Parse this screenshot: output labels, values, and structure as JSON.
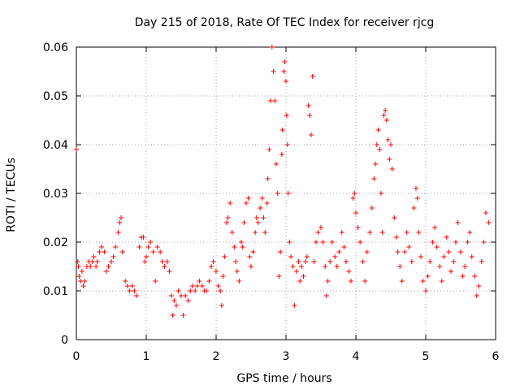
{
  "chart_data": {
    "type": "scatter",
    "title": "Day 215 of 2018, Rate Of TEC Index for receiver rjcg",
    "xlabel": "GPS time / hours",
    "ylabel": "ROTI / TECUs",
    "xlim": [
      0,
      6
    ],
    "ylim": [
      0,
      0.06
    ],
    "grid": true,
    "marker": "+",
    "color": "#ff0000",
    "xticks": [
      0,
      1,
      2,
      3,
      4,
      5,
      6
    ],
    "xtick_labels": [
      "0",
      "1",
      "2",
      "3",
      "4",
      "5",
      "6"
    ],
    "yticks": [
      0,
      0.01,
      0.02,
      0.03,
      0.04,
      0.05,
      0.06
    ],
    "ytick_labels": [
      "0",
      "0.01",
      "0.02",
      "0.03",
      "0.04",
      "0.05",
      "0.06"
    ],
    "points": [
      [
        0.0,
        0.039
      ],
      [
        0.02,
        0.016
      ],
      [
        0.03,
        0.015
      ],
      [
        0.04,
        0.013
      ],
      [
        0.06,
        0.012
      ],
      [
        0.08,
        0.014
      ],
      [
        0.1,
        0.011
      ],
      [
        0.12,
        0.012
      ],
      [
        0.15,
        0.015
      ],
      [
        0.18,
        0.016
      ],
      [
        0.2,
        0.015
      ],
      [
        0.23,
        0.016
      ],
      [
        0.25,
        0.017
      ],
      [
        0.28,
        0.015
      ],
      [
        0.3,
        0.016
      ],
      [
        0.33,
        0.018
      ],
      [
        0.36,
        0.019
      ],
      [
        0.4,
        0.018
      ],
      [
        0.43,
        0.014
      ],
      [
        0.46,
        0.015
      ],
      [
        0.5,
        0.016
      ],
      [
        0.53,
        0.017
      ],
      [
        0.56,
        0.019
      ],
      [
        0.6,
        0.022
      ],
      [
        0.62,
        0.024
      ],
      [
        0.64,
        0.025
      ],
      [
        0.66,
        0.018
      ],
      [
        0.7,
        0.012
      ],
      [
        0.73,
        0.011
      ],
      [
        0.76,
        0.01
      ],
      [
        0.8,
        0.011
      ],
      [
        0.83,
        0.01
      ],
      [
        0.86,
        0.009
      ],
      [
        0.9,
        0.019
      ],
      [
        0.93,
        0.021
      ],
      [
        0.96,
        0.021
      ],
      [
        0.98,
        0.016
      ],
      [
        1.0,
        0.017
      ],
      [
        1.03,
        0.019
      ],
      [
        1.06,
        0.02
      ],
      [
        1.1,
        0.018
      ],
      [
        1.13,
        0.012
      ],
      [
        1.16,
        0.019
      ],
      [
        1.2,
        0.018
      ],
      [
        1.23,
        0.016
      ],
      [
        1.26,
        0.015
      ],
      [
        1.3,
        0.016
      ],
      [
        1.33,
        0.014
      ],
      [
        1.36,
        0.009
      ],
      [
        1.38,
        0.005
      ],
      [
        1.4,
        0.008
      ],
      [
        1.43,
        0.007
      ],
      [
        1.46,
        0.01
      ],
      [
        1.5,
        0.009
      ],
      [
        1.53,
        0.005
      ],
      [
        1.56,
        0.009
      ],
      [
        1.6,
        0.008
      ],
      [
        1.63,
        0.01
      ],
      [
        1.66,
        0.011
      ],
      [
        1.7,
        0.01
      ],
      [
        1.73,
        0.011
      ],
      [
        1.76,
        0.012
      ],
      [
        1.8,
        0.011
      ],
      [
        1.83,
        0.01
      ],
      [
        1.86,
        0.01
      ],
      [
        1.9,
        0.012
      ],
      [
        1.93,
        0.015
      ],
      [
        1.96,
        0.016
      ],
      [
        2.0,
        0.014
      ],
      [
        2.03,
        0.011
      ],
      [
        2.06,
        0.01
      ],
      [
        2.08,
        0.007
      ],
      [
        2.1,
        0.013
      ],
      [
        2.12,
        0.017
      ],
      [
        2.15,
        0.024
      ],
      [
        2.17,
        0.025
      ],
      [
        2.2,
        0.028
      ],
      [
        2.23,
        0.022
      ],
      [
        2.26,
        0.019
      ],
      [
        2.28,
        0.016
      ],
      [
        2.3,
        0.014
      ],
      [
        2.33,
        0.012
      ],
      [
        2.36,
        0.02
      ],
      [
        2.38,
        0.019
      ],
      [
        2.4,
        0.024
      ],
      [
        2.43,
        0.028
      ],
      [
        2.46,
        0.029
      ],
      [
        2.48,
        0.017
      ],
      [
        2.5,
        0.015
      ],
      [
        2.53,
        0.018
      ],
      [
        2.56,
        0.022
      ],
      [
        2.58,
        0.025
      ],
      [
        2.6,
        0.024
      ],
      [
        2.63,
        0.027
      ],
      [
        2.66,
        0.029
      ],
      [
        2.68,
        0.025
      ],
      [
        2.7,
        0.022
      ],
      [
        2.73,
        0.028
      ],
      [
        2.74,
        0.033
      ],
      [
        2.76,
        0.039
      ],
      [
        2.78,
        0.049
      ],
      [
        2.8,
        0.06
      ],
      [
        2.82,
        0.055
      ],
      [
        2.84,
        0.049
      ],
      [
        2.86,
        0.036
      ],
      [
        2.88,
        0.03
      ],
      [
        2.9,
        0.013
      ],
      [
        2.92,
        0.018
      ],
      [
        2.94,
        0.038
      ],
      [
        2.95,
        0.043
      ],
      [
        2.97,
        0.055
      ],
      [
        2.98,
        0.057
      ],
      [
        3.0,
        0.053
      ],
      [
        3.01,
        0.046
      ],
      [
        3.02,
        0.04
      ],
      [
        3.03,
        0.03
      ],
      [
        3.05,
        0.02
      ],
      [
        3.07,
        0.017
      ],
      [
        3.1,
        0.015
      ],
      [
        3.12,
        0.007
      ],
      [
        3.15,
        0.014
      ],
      [
        3.18,
        0.016
      ],
      [
        3.2,
        0.012
      ],
      [
        3.22,
        0.015
      ],
      [
        3.25,
        0.013
      ],
      [
        3.28,
        0.016
      ],
      [
        3.3,
        0.017
      ],
      [
        3.32,
        0.048
      ],
      [
        3.34,
        0.046
      ],
      [
        3.36,
        0.042
      ],
      [
        3.38,
        0.054
      ],
      [
        3.4,
        0.016
      ],
      [
        3.43,
        0.02
      ],
      [
        3.46,
        0.022
      ],
      [
        3.5,
        0.023
      ],
      [
        3.53,
        0.02
      ],
      [
        3.56,
        0.015
      ],
      [
        3.58,
        0.009
      ],
      [
        3.6,
        0.012
      ],
      [
        3.63,
        0.016
      ],
      [
        3.66,
        0.02
      ],
      [
        3.7,
        0.017
      ],
      [
        3.73,
        0.015
      ],
      [
        3.76,
        0.018
      ],
      [
        3.8,
        0.022
      ],
      [
        3.83,
        0.019
      ],
      [
        3.86,
        0.016
      ],
      [
        3.9,
        0.014
      ],
      [
        3.93,
        0.012
      ],
      [
        3.96,
        0.029
      ],
      [
        3.98,
        0.03
      ],
      [
        4.0,
        0.026
      ],
      [
        4.03,
        0.023
      ],
      [
        4.06,
        0.02
      ],
      [
        4.1,
        0.016
      ],
      [
        4.13,
        0.012
      ],
      [
        4.16,
        0.018
      ],
      [
        4.2,
        0.022
      ],
      [
        4.23,
        0.027
      ],
      [
        4.26,
        0.033
      ],
      [
        4.28,
        0.036
      ],
      [
        4.3,
        0.04
      ],
      [
        4.32,
        0.043
      ],
      [
        4.34,
        0.039
      ],
      [
        4.36,
        0.03
      ],
      [
        4.38,
        0.022
      ],
      [
        4.4,
        0.046
      ],
      [
        4.42,
        0.047
      ],
      [
        4.44,
        0.045
      ],
      [
        4.46,
        0.041
      ],
      [
        4.48,
        0.037
      ],
      [
        4.5,
        0.04
      ],
      [
        4.52,
        0.035
      ],
      [
        4.55,
        0.025
      ],
      [
        4.58,
        0.021
      ],
      [
        4.6,
        0.018
      ],
      [
        4.63,
        0.015
      ],
      [
        4.66,
        0.012
      ],
      [
        4.7,
        0.018
      ],
      [
        4.73,
        0.022
      ],
      [
        4.76,
        0.019
      ],
      [
        4.8,
        0.016
      ],
      [
        4.83,
        0.027
      ],
      [
        4.86,
        0.031
      ],
      [
        4.88,
        0.029
      ],
      [
        4.9,
        0.022
      ],
      [
        4.93,
        0.017
      ],
      [
        4.96,
        0.012
      ],
      [
        5.0,
        0.01
      ],
      [
        5.03,
        0.013
      ],
      [
        5.06,
        0.016
      ],
      [
        5.1,
        0.02
      ],
      [
        5.13,
        0.023
      ],
      [
        5.16,
        0.019
      ],
      [
        5.2,
        0.015
      ],
      [
        5.23,
        0.012
      ],
      [
        5.26,
        0.017
      ],
      [
        5.3,
        0.021
      ],
      [
        5.33,
        0.018
      ],
      [
        5.36,
        0.014
      ],
      [
        5.4,
        0.016
      ],
      [
        5.43,
        0.02
      ],
      [
        5.46,
        0.024
      ],
      [
        5.5,
        0.018
      ],
      [
        5.53,
        0.013
      ],
      [
        5.56,
        0.015
      ],
      [
        5.6,
        0.02
      ],
      [
        5.63,
        0.022
      ],
      [
        5.66,
        0.017
      ],
      [
        5.7,
        0.013
      ],
      [
        5.73,
        0.009
      ],
      [
        5.76,
        0.011
      ],
      [
        5.8,
        0.016
      ],
      [
        5.83,
        0.02
      ],
      [
        5.86,
        0.026
      ],
      [
        5.9,
        0.024
      ]
    ]
  }
}
